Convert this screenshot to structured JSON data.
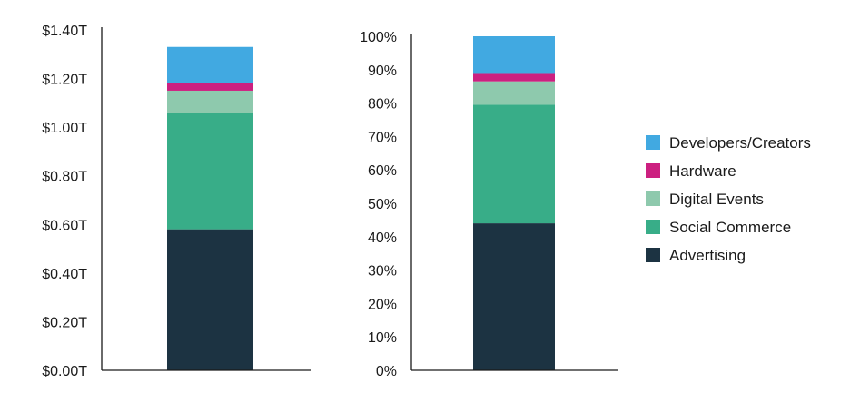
{
  "chart_data": [
    {
      "type": "bar",
      "stacked": true,
      "categories": [
        ""
      ],
      "ylim": [
        0,
        1.4
      ],
      "y_ticks": [
        "$0.00T",
        "$0.20T",
        "$0.40T",
        "$0.60T",
        "$0.80T",
        "$1.00T",
        "$1.20T",
        "$1.40T"
      ],
      "series": [
        {
          "name": "Advertising",
          "values": [
            0.58
          ]
        },
        {
          "name": "Social Commerce",
          "values": [
            0.48
          ]
        },
        {
          "name": "Digital Events",
          "values": [
            0.09
          ]
        },
        {
          "name": "Hardware",
          "values": [
            0.03
          ]
        },
        {
          "name": "Developers/Creators",
          "values": [
            0.15
          ]
        }
      ]
    },
    {
      "type": "bar",
      "stacked": true,
      "percent": true,
      "categories": [
        ""
      ],
      "ylim": [
        0,
        100
      ],
      "y_ticks": [
        "0%",
        "10%",
        "20%",
        "30%",
        "40%",
        "50%",
        "60%",
        "70%",
        "80%",
        "90%",
        "100%"
      ],
      "series": [
        {
          "name": "Advertising",
          "values": [
            44
          ]
        },
        {
          "name": "Social Commerce",
          "values": [
            35.5
          ]
        },
        {
          "name": "Digital Events",
          "values": [
            7
          ]
        },
        {
          "name": "Hardware",
          "values": [
            2.5
          ]
        },
        {
          "name": "Developers/Creators",
          "values": [
            11
          ]
        }
      ]
    }
  ],
  "legend": {
    "position": "right",
    "items": [
      {
        "label": "Developers/Creators",
        "color": "#41a9e1"
      },
      {
        "label": "Hardware",
        "color": "#cc2080"
      },
      {
        "label": "Digital Events",
        "color": "#8ec9ad"
      },
      {
        "label": "Social Commerce",
        "color": "#38ad88"
      },
      {
        "label": "Advertising",
        "color": "#1c3342"
      }
    ]
  },
  "colors": {
    "Advertising": "#1c3342",
    "Social Commerce": "#38ad88",
    "Digital Events": "#8ec9ad",
    "Hardware": "#cc2080",
    "Developers/Creators": "#41a9e1"
  }
}
